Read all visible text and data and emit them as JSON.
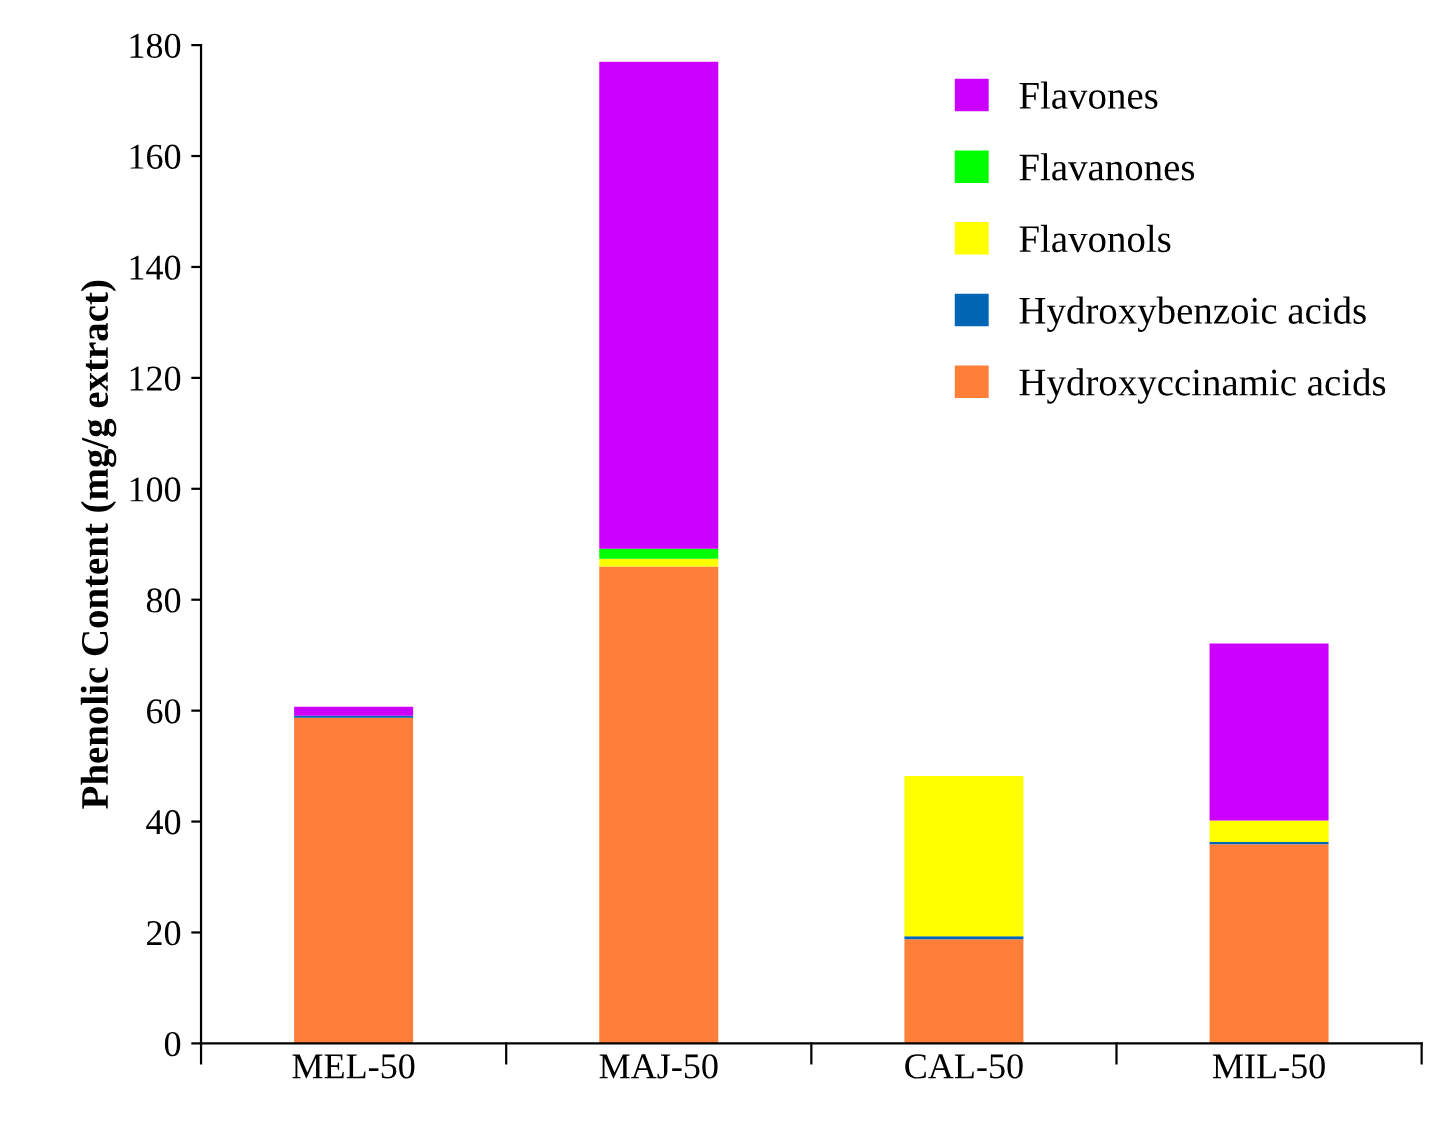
{
  "chart_data": {
    "type": "bar",
    "stacked": true,
    "ylabel": "Phenolic Content (mg/g extract)",
    "categories": [
      "MEL-50",
      "MAJ-50",
      "CAL-50",
      "MIL-50"
    ],
    "series": [
      {
        "name": "Hydroxyccinamic acids",
        "color": "#ff7f3a",
        "values": [
          58.7,
          86,
          18.8,
          35.9
        ]
      },
      {
        "name": "Hydroxybenzoic acids",
        "color": "#0066b3",
        "values": [
          0.4,
          0,
          0.5,
          0.4
        ]
      },
      {
        "name": "Flavonols",
        "color": "#ffff00",
        "values": [
          0,
          1.4,
          28.9,
          3.9
        ]
      },
      {
        "name": "Flavanones",
        "color": "#00ff00",
        "values": [
          0,
          1.8,
          0,
          0
        ]
      },
      {
        "name": "Flavones",
        "color": "#cc00ff",
        "values": [
          1.6,
          87.8,
          0,
          31.9
        ]
      }
    ],
    "ylim": [
      0,
      180
    ],
    "yticks": [
      0,
      20,
      40,
      60,
      80,
      100,
      120,
      140,
      160,
      180
    ],
    "grid": false,
    "legend": "top right"
  }
}
